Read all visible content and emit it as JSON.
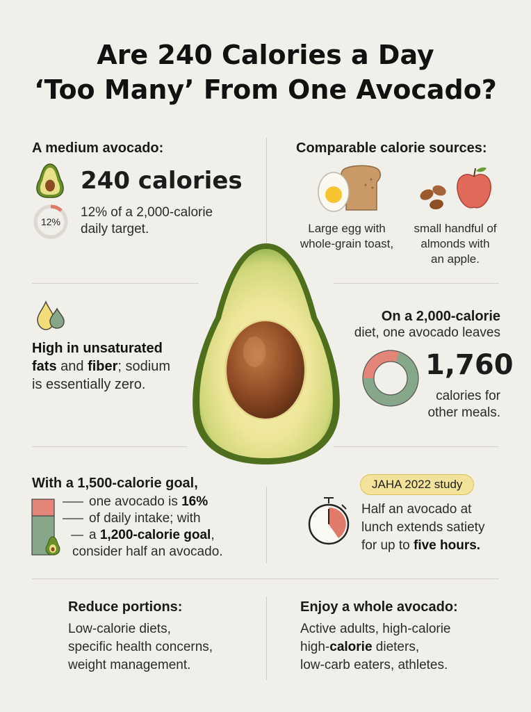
{
  "title": {
    "line1": "Are 240 Calories a Day",
    "line2": "‘Too Many’ From One Avocado?"
  },
  "medium": {
    "heading": "A medium avocado:",
    "calories": "240 calories",
    "pct_label": "12%",
    "pct_value": 0.12,
    "desc_line1": "12% of a 2,000-calorie",
    "desc_line2": "daily target."
  },
  "comparable": {
    "heading": "Comparable calorie sources:",
    "left": [
      "Large egg with",
      "whole-grain toast,"
    ],
    "right": [
      "small handful of",
      "almonds with",
      "an apple."
    ]
  },
  "fats": {
    "line1_bold": "High in unsaturated",
    "line2_bold_a": "fats",
    "line2_plain": " and ",
    "line2_bold_b": "fiber",
    "line2_tail": "; sodium",
    "line3": "is essentially zero."
  },
  "remaining": {
    "heading": "On a 2,000-calorie",
    "line2": "diet, one avocado leaves",
    "number": "1,760",
    "line3": "calories for",
    "line4": "other meals.",
    "used_fraction": 0.12
  },
  "goal": {
    "heading": "With a 1,500-calorie goal,",
    "l1_a": "one avocado is ",
    "l1_b": "16%",
    "l2": "of daily intake; with",
    "l3_a": "a ",
    "l3_b": "1,200-calorie goal",
    "l3_c": ",",
    "l4": "consider half an avocado."
  },
  "study": {
    "badge": "JAHA 2022 study",
    "l1": "Half an avocado at",
    "l2": "lunch extends satiety",
    "l3_a": "for up to ",
    "l3_b": "five hours."
  },
  "reduce": {
    "heading": "Reduce portions:",
    "lines": [
      "Low-calorie diets,",
      "specific health concerns,",
      "weight management."
    ]
  },
  "whole": {
    "heading": "Enjoy a whole avocado:",
    "l1": "Active adults, high-calorie",
    "l2_a": "high-",
    "l2_b": "calorie",
    "l2_c": " dieters,",
    "l3": "low-carb eaters, athletes."
  },
  "colors": {
    "background": "#f1efe9",
    "accent_red": "#e07b6b",
    "accent_green": "#86a78a",
    "badge_yellow": "#f3e29a"
  }
}
